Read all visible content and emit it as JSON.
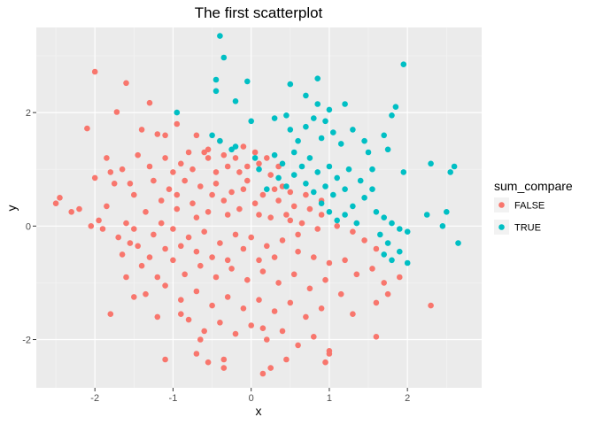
{
  "chart_data": {
    "type": "scatter",
    "title": "The first scatterplot",
    "xlabel": "x",
    "ylabel": "y",
    "xlim": [
      -2.75,
      2.95
    ],
    "ylim": [
      -2.85,
      3.5
    ],
    "xticks": [
      -2,
      -1,
      0,
      1,
      2
    ],
    "yticks": [
      -2,
      0,
      2
    ],
    "grid": true,
    "legend": {
      "title": "sum_compare",
      "placement": "right",
      "entries": [
        {
          "label": "FALSE",
          "color": "#f8766d"
        },
        {
          "label": "TRUE",
          "color": "#00bfc4"
        }
      ]
    },
    "series": [
      {
        "name": "FALSE",
        "color": "#f8766d",
        "points": [
          [
            -2.0,
            2.72
          ],
          [
            -1.6,
            2.52
          ],
          [
            -1.72,
            2.01
          ],
          [
            -1.3,
            2.17
          ],
          [
            -2.1,
            1.72
          ],
          [
            -1.4,
            1.7
          ],
          [
            -1.2,
            1.62
          ],
          [
            -1.1,
            1.6
          ],
          [
            -0.95,
            1.8
          ],
          [
            -0.7,
            1.6
          ],
          [
            -0.6,
            1.3
          ],
          [
            -0.4,
            1.5
          ],
          [
            -0.2,
            1.2
          ],
          [
            -0.1,
            1.4
          ],
          [
            0.05,
            1.3
          ],
          [
            -1.85,
            1.2
          ],
          [
            -1.65,
            1.0
          ],
          [
            -1.45,
            1.25
          ],
          [
            -1.3,
            1.05
          ],
          [
            -1.1,
            1.2
          ],
          [
            -0.9,
            1.1
          ],
          [
            -0.75,
            1.0
          ],
          [
            -0.55,
            1.2
          ],
          [
            -0.45,
            0.95
          ],
          [
            -0.3,
            1.05
          ],
          [
            -0.15,
            0.95
          ],
          [
            0.1,
            1.1
          ],
          [
            0.25,
            0.9
          ],
          [
            0.4,
            0.7
          ],
          [
            0.5,
            0.6
          ],
          [
            -2.0,
            0.85
          ],
          [
            -1.75,
            0.75
          ],
          [
            -1.5,
            0.55
          ],
          [
            -1.25,
            0.8
          ],
          [
            -1.05,
            0.65
          ],
          [
            -0.85,
            0.8
          ],
          [
            -0.65,
            0.7
          ],
          [
            -0.45,
            0.75
          ],
          [
            -0.25,
            0.6
          ],
          [
            -0.05,
            0.8
          ],
          [
            0.15,
            0.55
          ],
          [
            0.35,
            0.45
          ],
          [
            0.55,
            0.35
          ],
          [
            0.75,
            0.3
          ],
          [
            0.9,
            0.2
          ],
          [
            -2.45,
            0.5
          ],
          [
            -2.2,
            0.3
          ],
          [
            -1.95,
            0.1
          ],
          [
            -1.6,
            0.05
          ],
          [
            -1.35,
            0.25
          ],
          [
            -1.15,
            0.45
          ],
          [
            -0.95,
            0.3
          ],
          [
            -0.75,
            0.4
          ],
          [
            -0.55,
            0.25
          ],
          [
            -0.35,
            0.45
          ],
          [
            -0.15,
            0.3
          ],
          [
            0.05,
            0.4
          ],
          [
            0.25,
            0.15
          ],
          [
            0.45,
            0.2
          ],
          [
            0.65,
            0.05
          ],
          [
            0.85,
            -0.05
          ],
          [
            1.1,
            0.0
          ],
          [
            1.3,
            -0.1
          ],
          [
            1.45,
            -0.25
          ],
          [
            1.6,
            -0.4
          ],
          [
            -2.5,
            0.4
          ],
          [
            -2.05,
            0.0
          ],
          [
            -1.7,
            -0.2
          ],
          [
            -1.45,
            -0.35
          ],
          [
            -1.25,
            -0.15
          ],
          [
            -1.0,
            -0.05
          ],
          [
            -0.8,
            -0.2
          ],
          [
            -0.6,
            -0.1
          ],
          [
            -0.4,
            -0.3
          ],
          [
            -0.2,
            -0.15
          ],
          [
            0.0,
            -0.2
          ],
          [
            0.2,
            -0.35
          ],
          [
            0.4,
            -0.25
          ],
          [
            0.6,
            -0.45
          ],
          [
            0.8,
            -0.55
          ],
          [
            1.0,
            -0.65
          ],
          [
            1.2,
            -0.6
          ],
          [
            1.35,
            -0.85
          ],
          [
            1.55,
            -0.75
          ],
          [
            1.7,
            -1.0
          ],
          [
            -1.65,
            -0.5
          ],
          [
            -1.4,
            -0.7
          ],
          [
            -1.2,
            -0.9
          ],
          [
            -1.0,
            -0.6
          ],
          [
            -0.85,
            -0.85
          ],
          [
            -0.65,
            -0.7
          ],
          [
            -0.45,
            -0.9
          ],
          [
            -0.25,
            -0.75
          ],
          [
            -0.05,
            -0.95
          ],
          [
            0.15,
            -0.8
          ],
          [
            0.35,
            -1.0
          ],
          [
            0.55,
            -0.85
          ],
          [
            0.75,
            -1.1
          ],
          [
            0.95,
            -0.95
          ],
          [
            1.15,
            -1.2
          ],
          [
            -1.6,
            -0.9
          ],
          [
            -1.35,
            -1.2
          ],
          [
            -1.1,
            -1.05
          ],
          [
            -0.9,
            -1.3
          ],
          [
            -0.7,
            -1.15
          ],
          [
            -0.5,
            -1.4
          ],
          [
            -0.3,
            -1.25
          ],
          [
            -0.1,
            -1.45
          ],
          [
            0.1,
            -1.3
          ],
          [
            0.3,
            -1.5
          ],
          [
            0.5,
            -1.35
          ],
          [
            0.7,
            -1.6
          ],
          [
            0.9,
            -1.45
          ],
          [
            1.3,
            -1.55
          ],
          [
            1.6,
            -1.35
          ],
          [
            1.75,
            -1.2
          ],
          [
            1.9,
            -0.9
          ],
          [
            2.3,
            -1.4
          ],
          [
            -1.8,
            -1.55
          ],
          [
            -1.5,
            -1.25
          ],
          [
            -1.2,
            -1.6
          ],
          [
            -0.8,
            -1.65
          ],
          [
            -0.6,
            -1.85
          ],
          [
            -0.4,
            -1.7
          ],
          [
            -0.2,
            -1.9
          ],
          [
            0.0,
            -1.75
          ],
          [
            0.2,
            -2.0
          ],
          [
            0.4,
            -1.85
          ],
          [
            0.6,
            -2.1
          ],
          [
            0.8,
            -1.95
          ],
          [
            1.0,
            -2.2
          ],
          [
            1.6,
            -1.95
          ],
          [
            -0.65,
            -2.0
          ],
          [
            -0.55,
            -2.4
          ],
          [
            -0.35,
            -2.35
          ],
          [
            -0.35,
            -2.5
          ],
          [
            0.15,
            -1.8
          ],
          [
            0.15,
            -2.6
          ],
          [
            0.25,
            -2.5
          ],
          [
            0.45,
            -2.35
          ],
          [
            0.95,
            -2.4
          ],
          [
            1.0,
            -2.25
          ],
          [
            -1.1,
            -2.35
          ],
          [
            -0.7,
            -2.25
          ],
          [
            -0.9,
            -1.55
          ],
          [
            -1.85,
            0.35
          ],
          [
            -1.55,
            0.75
          ],
          [
            -1.8,
            0.95
          ],
          [
            -1.15,
            0.05
          ],
          [
            -0.95,
            0.55
          ],
          [
            -0.7,
            0.15
          ],
          [
            -0.5,
            0.55
          ],
          [
            -0.3,
            0.2
          ],
          [
            -0.1,
            0.65
          ],
          [
            0.1,
            0.2
          ],
          [
            0.3,
            0.65
          ],
          [
            0.5,
            0.1
          ],
          [
            0.7,
            0.55
          ],
          [
            0.9,
            0.45
          ],
          [
            0.6,
            -0.15
          ],
          [
            0.3,
            -0.55
          ],
          [
            0.1,
            -0.6
          ],
          [
            -0.1,
            -0.4
          ],
          [
            -0.3,
            -0.6
          ],
          [
            -0.5,
            -0.55
          ],
          [
            -0.7,
            -0.45
          ],
          [
            -0.9,
            -0.35
          ],
          [
            -1.1,
            -0.4
          ],
          [
            -1.3,
            -0.55
          ],
          [
            -1.5,
            -0.05
          ],
          [
            -1.55,
            -0.3
          ],
          [
            -1.9,
            -0.05
          ],
          [
            -2.3,
            0.25
          ],
          [
            -1.0,
            0.95
          ],
          [
            -0.8,
            1.3
          ],
          [
            -0.55,
            1.35
          ],
          [
            -0.35,
            1.25
          ],
          [
            -0.05,
            1.05
          ],
          [
            0.2,
            1.2
          ],
          [
            0.35,
            1.05
          ]
        ]
      },
      {
        "name": "TRUE",
        "color": "#00bfc4",
        "points": [
          [
            -0.4,
            3.35
          ],
          [
            -0.35,
            2.97
          ],
          [
            -0.45,
            2.58
          ],
          [
            -0.45,
            2.38
          ],
          [
            -0.05,
            2.55
          ],
          [
            -0.2,
            2.2
          ],
          [
            0.5,
            2.5
          ],
          [
            0.7,
            2.3
          ],
          [
            0.85,
            2.6
          ],
          [
            0.85,
            2.15
          ],
          [
            1.2,
            2.15
          ],
          [
            1.0,
            2.05
          ],
          [
            1.95,
            2.85
          ],
          [
            1.85,
            2.1
          ],
          [
            1.8,
            1.95
          ],
          [
            -0.95,
            2.0
          ],
          [
            -0.5,
            1.6
          ],
          [
            -0.4,
            1.5
          ],
          [
            -0.2,
            1.4
          ],
          [
            0.0,
            1.85
          ],
          [
            0.3,
            1.9
          ],
          [
            0.45,
            1.95
          ],
          [
            0.5,
            1.7
          ],
          [
            0.6,
            1.5
          ],
          [
            0.7,
            1.75
          ],
          [
            0.8,
            1.9
          ],
          [
            0.9,
            1.55
          ],
          [
            0.95,
            1.85
          ],
          [
            1.05,
            1.65
          ],
          [
            1.15,
            1.45
          ],
          [
            1.3,
            1.7
          ],
          [
            1.45,
            1.5
          ],
          [
            1.5,
            1.3
          ],
          [
            1.7,
            1.6
          ],
          [
            1.75,
            1.35
          ],
          [
            0.3,
            1.25
          ],
          [
            0.4,
            1.1
          ],
          [
            0.55,
            1.3
          ],
          [
            0.65,
            1.05
          ],
          [
            0.75,
            1.2
          ],
          [
            0.85,
            0.95
          ],
          [
            1.0,
            1.05
          ],
          [
            1.1,
            0.85
          ],
          [
            1.25,
            1.0
          ],
          [
            1.4,
            0.8
          ],
          [
            0.35,
            0.85
          ],
          [
            0.45,
            0.7
          ],
          [
            0.55,
            0.9
          ],
          [
            0.7,
            0.75
          ],
          [
            0.8,
            0.6
          ],
          [
            0.95,
            0.7
          ],
          [
            1.05,
            0.55
          ],
          [
            1.2,
            0.65
          ],
          [
            1.45,
            0.5
          ],
          [
            1.55,
            0.65
          ],
          [
            0.9,
            0.4
          ],
          [
            1.0,
            0.25
          ],
          [
            1.1,
            0.1
          ],
          [
            1.2,
            0.2
          ],
          [
            1.35,
            0.05
          ],
          [
            1.6,
            0.25
          ],
          [
            1.7,
            0.15
          ],
          [
            1.8,
            0.05
          ],
          [
            1.9,
            -0.05
          ],
          [
            2.0,
            -0.1
          ],
          [
            1.65,
            -0.15
          ],
          [
            1.75,
            -0.3
          ],
          [
            1.7,
            -0.5
          ],
          [
            1.8,
            -0.6
          ],
          [
            1.9,
            -0.45
          ],
          [
            2.0,
            -0.65
          ],
          [
            2.25,
            0.2
          ],
          [
            2.45,
            0.0
          ],
          [
            2.55,
            0.95
          ],
          [
            2.6,
            1.05
          ],
          [
            2.3,
            1.1
          ],
          [
            2.65,
            -0.3
          ],
          [
            2.5,
            0.25
          ],
          [
            1.95,
            0.95
          ],
          [
            1.55,
            1.0
          ],
          [
            0.1,
            1.0
          ],
          [
            0.2,
            0.65
          ],
          [
            0.05,
            1.2
          ],
          [
            -0.25,
            1.35
          ],
          [
            1.3,
            0.35
          ]
        ]
      }
    ]
  }
}
